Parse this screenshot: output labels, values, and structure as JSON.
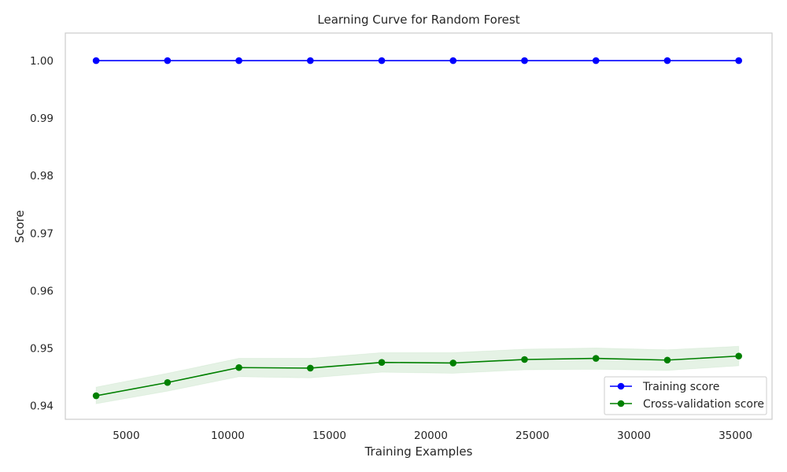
{
  "chart_data": {
    "type": "line",
    "title": "Learning Curve for Random Forest",
    "xlabel": "Training Examples",
    "ylabel": "Score",
    "x": [
      3516,
      7032,
      10548,
      14064,
      17580,
      21096,
      24612,
      28128,
      31644,
      35160
    ],
    "xlim": [
      2000,
      36800
    ],
    "ylim": [
      0.9376,
      1.0048
    ],
    "xticks": [
      5000,
      10000,
      15000,
      20000,
      25000,
      30000,
      35000
    ],
    "xtick_labels": [
      "5000",
      "10000",
      "15000",
      "20000",
      "25000",
      "30000",
      "35000"
    ],
    "yticks": [
      0.94,
      0.95,
      0.96,
      0.97,
      0.98,
      0.99,
      1.0
    ],
    "ytick_labels": [
      "0.94",
      "0.95",
      "0.96",
      "0.97",
      "0.98",
      "0.99",
      "1.00"
    ],
    "grid": false,
    "legend_position": "lower right",
    "series": [
      {
        "name": "Training score",
        "color": "#0000ff",
        "values": [
          1.0,
          1.0,
          1.0,
          1.0,
          1.0,
          1.0,
          1.0,
          1.0,
          1.0,
          1.0
        ],
        "band_lower": [
          1.0,
          1.0,
          1.0,
          1.0,
          1.0,
          1.0,
          1.0,
          1.0,
          1.0,
          1.0
        ],
        "band_upper": [
          1.0,
          1.0,
          1.0,
          1.0,
          1.0,
          1.0,
          1.0,
          1.0,
          1.0,
          1.0
        ],
        "band_color": "#0000ff"
      },
      {
        "name": "Cross-validation score",
        "color": "#008000",
        "values": [
          0.9417,
          0.944,
          0.9466,
          0.9465,
          0.9475,
          0.9474,
          0.948,
          0.9482,
          0.9479,
          0.9486
        ],
        "band_lower": [
          0.9403,
          0.9425,
          0.945,
          0.9448,
          0.9458,
          0.9456,
          0.9462,
          0.9463,
          0.9461,
          0.9469
        ],
        "band_upper": [
          0.9432,
          0.9456,
          0.9482,
          0.9482,
          0.9492,
          0.9492,
          0.9498,
          0.95,
          0.9497,
          0.9503
        ],
        "band_color": "#008000"
      }
    ]
  }
}
